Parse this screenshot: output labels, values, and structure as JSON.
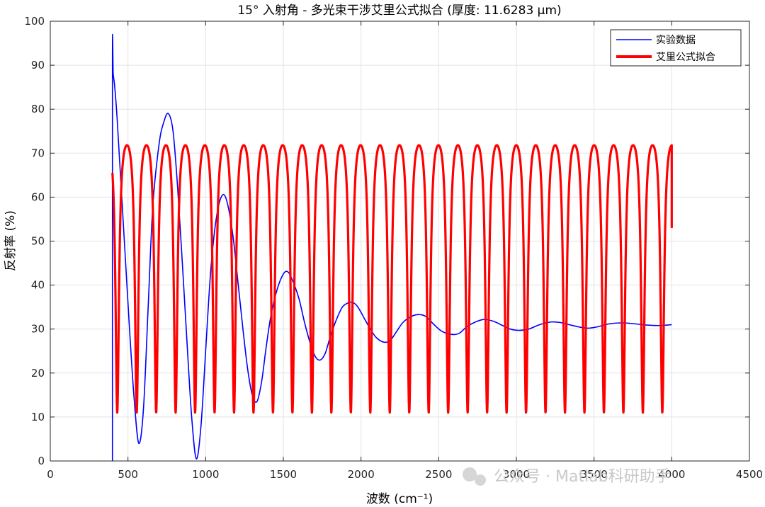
{
  "chart_data": {
    "type": "line",
    "title": "15° 入射角 - 多光束干涉艾里公式拟合 (厚度: 11.6283 μm)",
    "xlabel": "波数 (cm⁻¹)",
    "ylabel": "反射率 (%)",
    "xlim": [
      0,
      4500
    ],
    "ylim": [
      0,
      100
    ],
    "xticks": [
      0,
      500,
      1000,
      1500,
      2000,
      2500,
      3000,
      3500,
      4000,
      4500
    ],
    "yticks": [
      0,
      10,
      20,
      30,
      40,
      50,
      60,
      70,
      80,
      90,
      100
    ],
    "grid": true,
    "legend_position": "top-right",
    "series": [
      {
        "name": "实验数据",
        "color": "#0000ff",
        "points": [
          [
            400,
            0
          ],
          [
            400,
            91
          ],
          [
            405,
            88
          ],
          [
            415,
            85
          ],
          [
            430,
            78
          ],
          [
            450,
            66
          ],
          [
            480,
            48
          ],
          [
            510,
            30
          ],
          [
            540,
            14
          ],
          [
            570,
            4
          ],
          [
            600,
            12
          ],
          [
            630,
            35
          ],
          [
            660,
            58
          ],
          [
            700,
            72
          ],
          [
            730,
            77
          ],
          [
            760,
            79
          ],
          [
            790,
            75
          ],
          [
            820,
            62
          ],
          [
            850,
            45
          ],
          [
            880,
            27
          ],
          [
            910,
            10
          ],
          [
            940,
            0.5
          ],
          [
            970,
            8
          ],
          [
            1000,
            25
          ],
          [
            1030,
            42
          ],
          [
            1060,
            53
          ],
          [
            1090,
            59
          ],
          [
            1120,
            60.5
          ],
          [
            1150,
            57
          ],
          [
            1180,
            50
          ],
          [
            1210,
            40
          ],
          [
            1240,
            30
          ],
          [
            1270,
            21
          ],
          [
            1300,
            15
          ],
          [
            1330,
            13.5
          ],
          [
            1360,
            18
          ],
          [
            1390,
            26
          ],
          [
            1420,
            33
          ],
          [
            1460,
            39
          ],
          [
            1500,
            42.5
          ],
          [
            1530,
            43
          ],
          [
            1560,
            41
          ],
          [
            1600,
            37
          ],
          [
            1640,
            31
          ],
          [
            1680,
            26
          ],
          [
            1710,
            23.5
          ],
          [
            1740,
            23
          ],
          [
            1770,
            24.5
          ],
          [
            1800,
            28
          ],
          [
            1840,
            32
          ],
          [
            1880,
            35
          ],
          [
            1920,
            36
          ],
          [
            1950,
            36
          ],
          [
            1980,
            35
          ],
          [
            2020,
            32.5
          ],
          [
            2060,
            30
          ],
          [
            2100,
            28
          ],
          [
            2150,
            27
          ],
          [
            2190,
            27.5
          ],
          [
            2230,
            29.5
          ],
          [
            2270,
            31.5
          ],
          [
            2320,
            32.8
          ],
          [
            2370,
            33.3
          ],
          [
            2420,
            32.8
          ],
          [
            2470,
            31
          ],
          [
            2520,
            29.5
          ],
          [
            2580,
            28.8
          ],
          [
            2630,
            29
          ],
          [
            2680,
            30.5
          ],
          [
            2730,
            31.5
          ],
          [
            2790,
            32.2
          ],
          [
            2850,
            31.8
          ],
          [
            2900,
            31
          ],
          [
            2960,
            30
          ],
          [
            3020,
            29.7
          ],
          [
            3080,
            30
          ],
          [
            3150,
            31
          ],
          [
            3220,
            31.6
          ],
          [
            3280,
            31.5
          ],
          [
            3340,
            31
          ],
          [
            3400,
            30.5
          ],
          [
            3460,
            30.2
          ],
          [
            3520,
            30.5
          ],
          [
            3600,
            31.2
          ],
          [
            3680,
            31.4
          ],
          [
            3760,
            31.2
          ],
          [
            3840,
            30.9
          ],
          [
            3920,
            30.8
          ],
          [
            4000,
            31
          ]
        ]
      },
      {
        "name": "艾里公式拟合",
        "color": "#ff0000",
        "model": "airy",
        "x_range": [
          400,
          4000
        ],
        "y_max": 71.8,
        "y_min": 11,
        "start_value": 65.5,
        "end_value": 53,
        "period": 125.3
      }
    ]
  },
  "watermark": {
    "text": "公众号 · Matlab科研助手"
  }
}
